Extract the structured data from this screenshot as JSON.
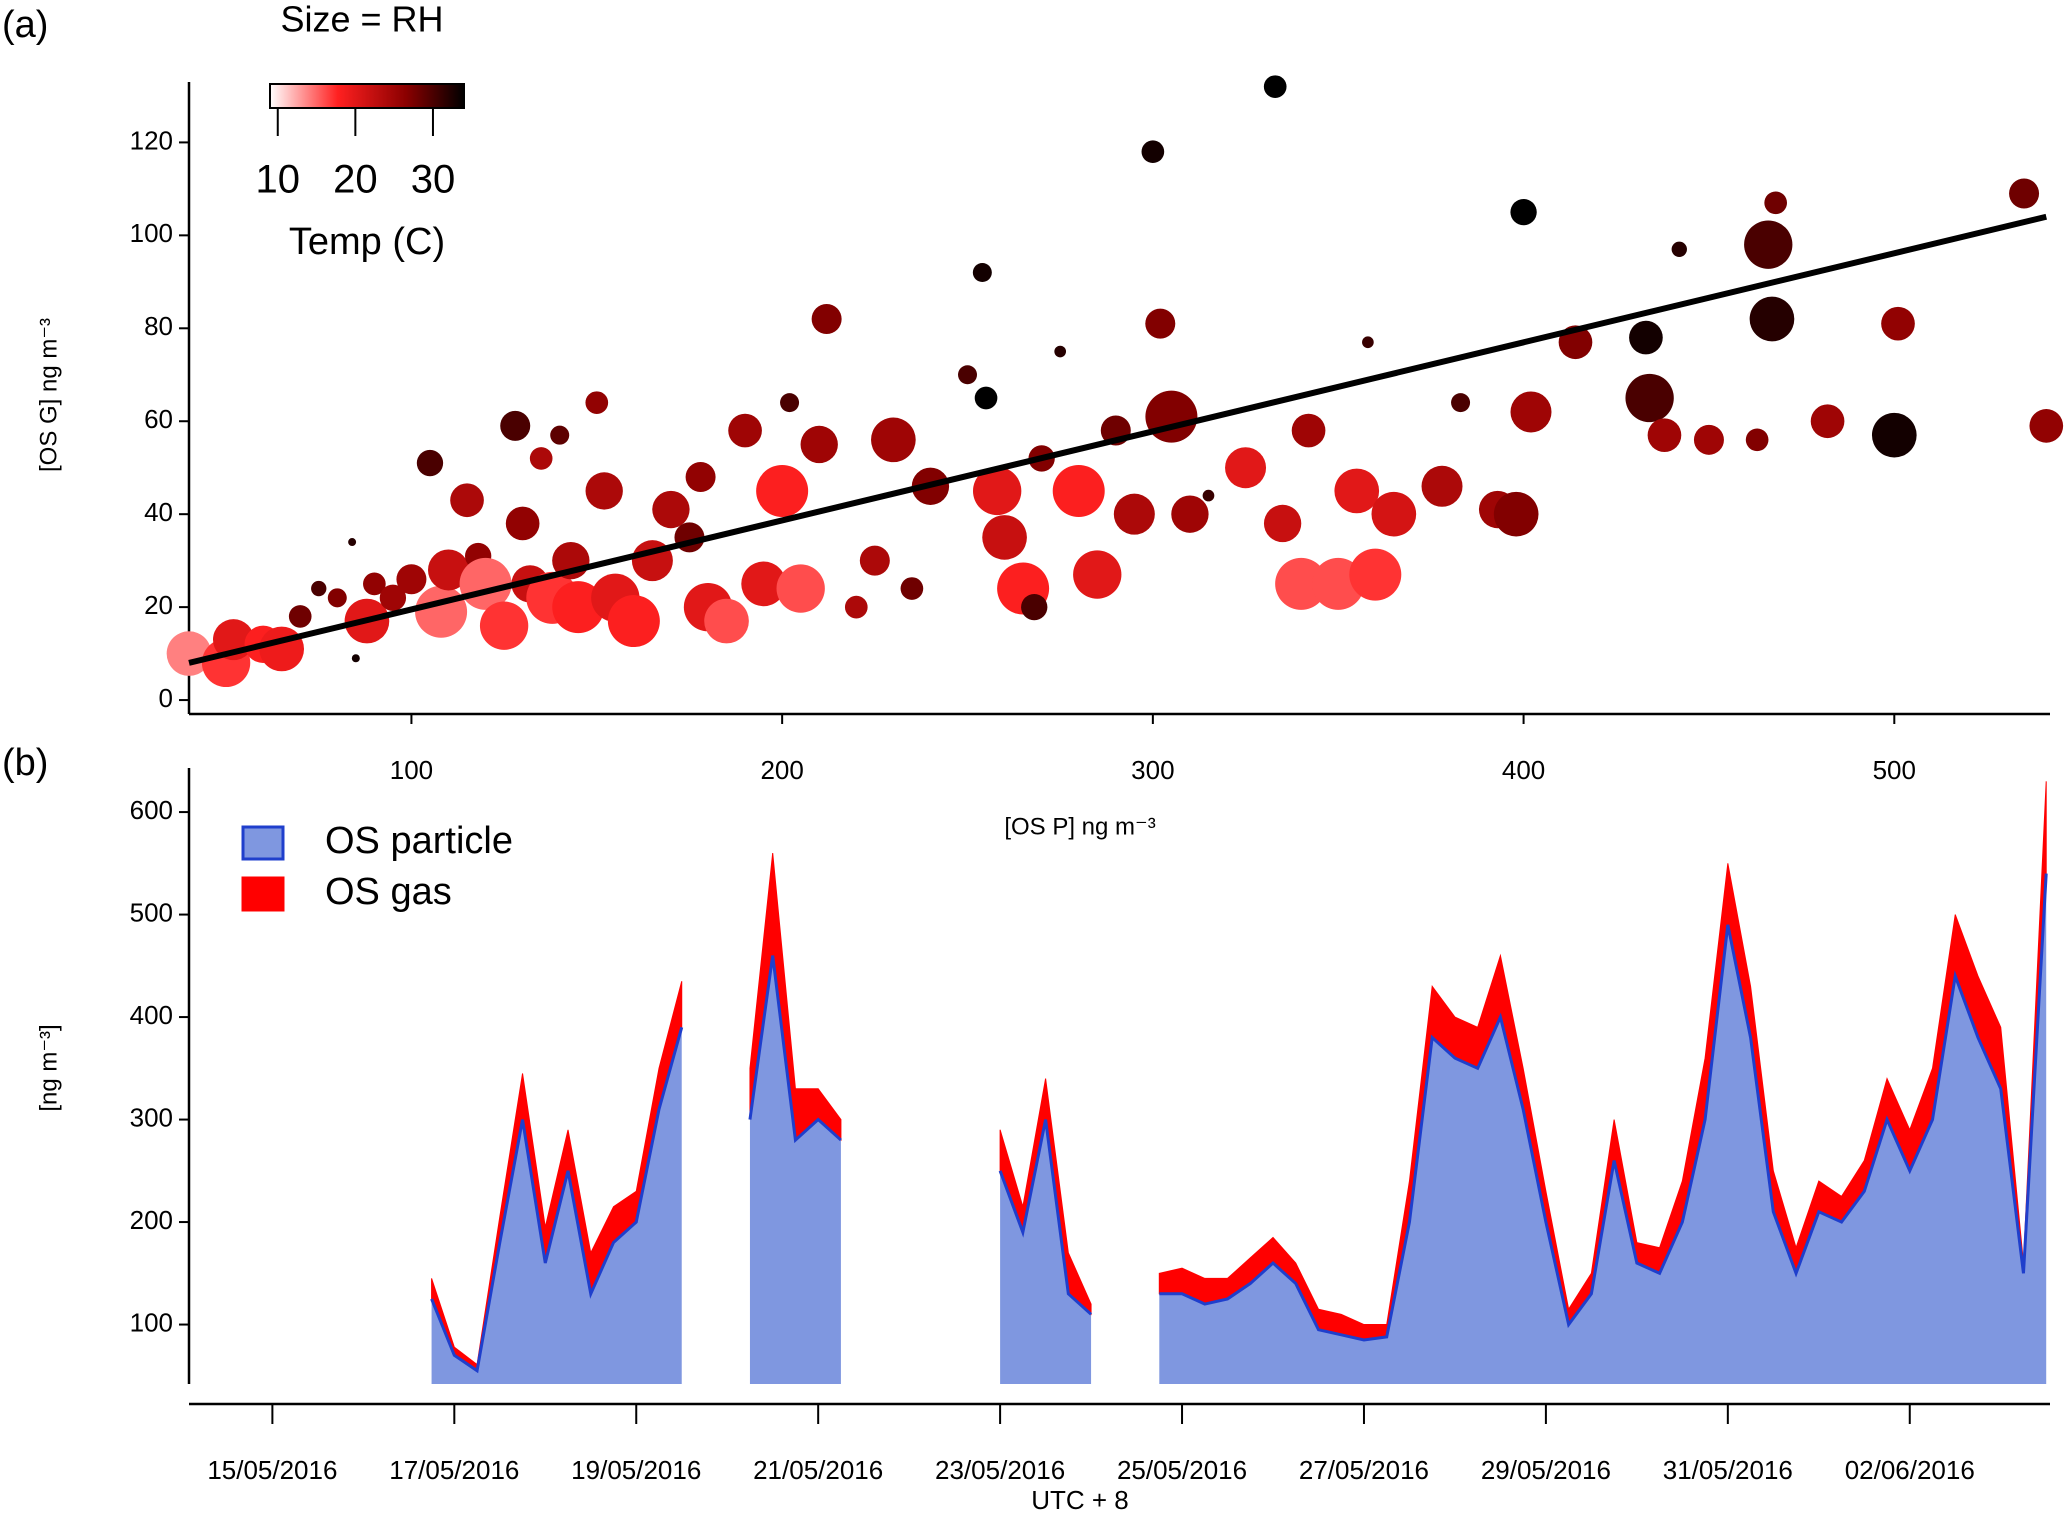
{
  "chart_data": [
    {
      "type": "scatter",
      "panel_label": "(a)",
      "xlabel": "[OS P] ng m⁻³",
      "ylabel": "[OS G] ng m⁻³",
      "size_label": "Size = RH",
      "colorbar": {
        "label": "Temp (C)",
        "lim": [
          9,
          34
        ],
        "ticks": [
          10,
          20,
          30
        ]
      },
      "xlim": [
        40,
        542
      ],
      "xticks": [
        100,
        200,
        300,
        400,
        500
      ],
      "ylim": [
        -3,
        133
      ],
      "yticks": [
        0,
        20,
        40,
        60,
        80,
        100,
        120
      ],
      "x": [
        40,
        50,
        52,
        60,
        65,
        70,
        75,
        80,
        84,
        85,
        88,
        90,
        95,
        100,
        105,
        108,
        110,
        115,
        118,
        120,
        125,
        128,
        130,
        132,
        135,
        138,
        140,
        143,
        145,
        150,
        152,
        155,
        160,
        165,
        170,
        175,
        178,
        180,
        185,
        190,
        195,
        200,
        202,
        205,
        210,
        212,
        220,
        225,
        230,
        235,
        240,
        250,
        254,
        255,
        258,
        260,
        265,
        268,
        270,
        275,
        280,
        285,
        290,
        295,
        300,
        302,
        305,
        310,
        315,
        325,
        333,
        335,
        340,
        342,
        350,
        355,
        358,
        360,
        365,
        378,
        383,
        393,
        398,
        400,
        402,
        414,
        433,
        434,
        438,
        442,
        450,
        463,
        466,
        467,
        468,
        482,
        500,
        501,
        535,
        541
      ],
      "values": [
        10,
        8,
        13,
        12,
        11,
        18,
        24,
        22,
        34,
        9,
        17,
        25,
        22,
        26,
        51,
        19,
        28,
        43,
        31,
        25,
        16,
        59,
        38,
        25,
        52,
        22,
        57,
        30,
        20,
        64,
        45,
        22,
        17,
        30,
        41,
        35,
        48,
        20,
        17,
        58,
        25,
        45,
        64,
        24,
        55,
        82,
        20,
        30,
        56,
        24,
        46,
        70,
        92,
        65,
        45,
        35,
        24,
        20,
        52,
        75,
        45,
        27,
        58,
        40,
        118,
        81,
        61,
        40,
        44,
        50,
        132,
        38,
        25,
        58,
        25,
        45,
        77,
        27,
        40,
        46,
        64,
        41,
        40,
        105,
        62,
        77,
        78,
        65,
        57,
        97,
        56,
        56,
        98,
        82,
        107,
        60,
        57,
        81,
        109,
        59
      ],
      "color_values": [
        14,
        17,
        20,
        18,
        19,
        28,
        30,
        27,
        32,
        33,
        20,
        26,
        25,
        25,
        30,
        15,
        22,
        24,
        26,
        15,
        17,
        30,
        26,
        22,
        24,
        17,
        29,
        24,
        18,
        26,
        24,
        20,
        18,
        22,
        24,
        28,
        26,
        20,
        16,
        25,
        20,
        18,
        30,
        16,
        25,
        27,
        24,
        24,
        25,
        28,
        27,
        30,
        33,
        34,
        20,
        22,
        18,
        30,
        27,
        32,
        18,
        20,
        28,
        24,
        33,
        27,
        27,
        25,
        31,
        20,
        34,
        22,
        16,
        25,
        16,
        20,
        31,
        17,
        21,
        24,
        30,
        25,
        27,
        34,
        25,
        27,
        33,
        30,
        25,
        32,
        25,
        27,
        30,
        32,
        28,
        25,
        33,
        26,
        28,
        26
      ],
      "size_values": [
        90,
        95,
        85,
        80,
        90,
        60,
        50,
        55,
        40,
        40,
        90,
        60,
        65,
        70,
        65,
        100,
        85,
        75,
        65,
        100,
        95,
        70,
        75,
        80,
        60,
        100,
        55,
        80,
        100,
        60,
        80,
        95,
        100,
        85,
        80,
        70,
        70,
        95,
        90,
        75,
        90,
        100,
        55,
        95,
        80,
        70,
        60,
        70,
        90,
        60,
        80,
        55,
        55,
        60,
        95,
        90,
        100,
        65,
        65,
        45,
        100,
        95,
        70,
        85,
        60,
        70,
        100,
        80,
        45,
        85,
        60,
        80,
        100,
        75,
        100,
        90,
        45,
        100,
        90,
        85,
        55,
        80,
        90,
        65,
        85,
        75,
        75,
        95,
        75,
        50,
        70,
        60,
        95,
        90,
        60,
        75,
        90,
        75,
        70,
        75
      ],
      "fit": {
        "x": [
          40,
          541
        ],
        "values": [
          8,
          104
        ]
      }
    },
    {
      "type": "area",
      "panel_label": "(b)",
      "xlabel": "UTC + 8",
      "ylabel": "[ng m⁻³]",
      "xlim": [
        "14/05/2016 02:00",
        "03/06/2016 13:00"
      ],
      "xticks": [
        "15/05/2016",
        "17/05/2016",
        "19/05/2016",
        "21/05/2016",
        "23/05/2016",
        "25/05/2016",
        "27/05/2016",
        "29/05/2016",
        "31/05/2016",
        "02/06/2016"
      ],
      "ylim": [
        42,
        643
      ],
      "yticks": [
        100,
        200,
        300,
        400,
        500,
        600
      ],
      "legend": "upper left",
      "x": [
        "16/05/2016 18:00",
        "17/05/2016 00:00",
        "17/05/2016 06:00",
        "17/05/2016 12:00",
        "17/05/2016 18:00",
        "18/05/2016 00:00",
        "18/05/2016 06:00",
        "18/05/2016 12:00",
        "18/05/2016 18:00",
        "19/05/2016 00:00",
        "19/05/2016 06:00",
        "19/05/2016 12:00",
        "19/05/2016 18:00",
        "20/05/2016 00:00",
        "20/05/2016 06:00",
        "20/05/2016 12:00",
        "20/05/2016 18:00",
        "21/05/2016 00:00",
        "21/05/2016 06:00",
        "21/05/2016 12:00",
        "21/05/2016 18:00",
        "22/05/2016 00:00",
        "22/05/2016 06:00",
        "22/05/2016 12:00",
        "22/05/2016 18:00",
        "23/05/2016 00:00",
        "23/05/2016 06:00",
        "23/05/2016 12:00",
        "23/05/2016 18:00",
        "24/05/2016 00:00",
        "24/05/2016 06:00",
        "24/05/2016 12:00",
        "24/05/2016 18:00",
        "25/05/2016 00:00",
        "25/05/2016 06:00",
        "25/05/2016 12:00",
        "25/05/2016 18:00",
        "26/05/2016 00:00",
        "26/05/2016 06:00",
        "26/05/2016 12:00",
        "26/05/2016 18:00",
        "27/05/2016 00:00",
        "27/05/2016 06:00",
        "27/05/2016 12:00",
        "27/05/2016 18:00",
        "28/05/2016 00:00",
        "28/05/2016 06:00",
        "28/05/2016 12:00",
        "28/05/2016 18:00",
        "29/05/2016 00:00",
        "29/05/2016 06:00",
        "29/05/2016 12:00",
        "29/05/2016 18:00",
        "30/05/2016 00:00",
        "30/05/2016 06:00",
        "30/05/2016 12:00",
        "30/05/2016 18:00",
        "31/05/2016 00:00",
        "31/05/2016 06:00",
        "31/05/2016 12:00",
        "31/05/2016 18:00",
        "01/06/2016 00:00",
        "01/06/2016 06:00",
        "01/06/2016 12:00",
        "01/06/2016 18:00",
        "02/06/2016 00:00",
        "02/06/2016 06:00",
        "02/06/2016 12:00",
        "02/06/2016 18:00",
        "03/06/2016 00:00",
        "03/06/2016 06:00",
        "03/06/2016 12:00"
      ],
      "series": [
        {
          "name": "OS particle",
          "color": "#7f97e0",
          "edge_color": "#1f3fcc",
          "values": [
            125,
            70,
            55,
            180,
            300,
            160,
            250,
            130,
            180,
            200,
            310,
            390,
            null,
            null,
            300,
            460,
            280,
            300,
            280,
            null,
            null,
            null,
            null,
            null,
            null,
            250,
            190,
            300,
            130,
            110,
            null,
            null,
            130,
            130,
            120,
            125,
            140,
            160,
            140,
            95,
            90,
            85,
            88,
            200,
            380,
            360,
            350,
            400,
            310,
            200,
            100,
            130,
            260,
            160,
            150,
            200,
            300,
            490,
            380,
            210,
            150,
            210,
            200,
            230,
            300,
            250,
            300,
            440,
            380,
            330,
            150,
            540
          ]
        },
        {
          "name": "OS gas",
          "color": "#ff0000",
          "values": [
            20,
            8,
            6,
            25,
            45,
            35,
            40,
            40,
            35,
            30,
            40,
            45,
            null,
            null,
            50,
            100,
            50,
            30,
            20,
            null,
            null,
            null,
            null,
            null,
            null,
            40,
            25,
            40,
            40,
            10,
            null,
            null,
            20,
            25,
            25,
            20,
            25,
            25,
            20,
            20,
            20,
            15,
            12,
            40,
            50,
            40,
            40,
            60,
            40,
            30,
            15,
            20,
            40,
            20,
            25,
            40,
            60,
            60,
            50,
            40,
            25,
            30,
            25,
            30,
            40,
            40,
            50,
            60,
            60,
            60,
            10,
            90
          ]
        }
      ]
    }
  ]
}
